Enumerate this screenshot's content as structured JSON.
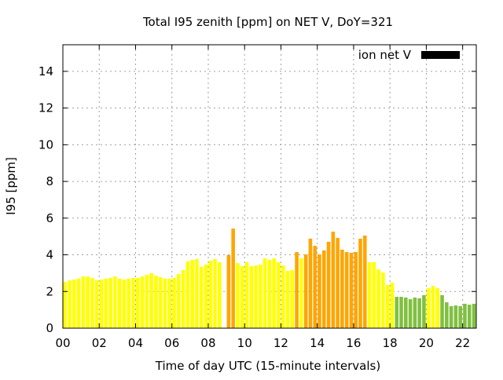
{
  "chart_data": {
    "type": "bar",
    "title": "Total I95 zenith [ppm] on NET V, DoY=321",
    "xlabel": "Time of day UTC (15-minute intervals)",
    "ylabel": "I95 [ppm]",
    "xlim": [
      0,
      22.75
    ],
    "ylim": [
      0,
      15.45
    ],
    "interval_hours": 0.25,
    "grid": true,
    "x_ticks": [
      0,
      2,
      4,
      6,
      8,
      10,
      12,
      14,
      16,
      18,
      20,
      22
    ],
    "x_tick_labels": [
      "00",
      "02",
      "04",
      "06",
      "08",
      "10",
      "12",
      "14",
      "16",
      "18",
      "20",
      "22"
    ],
    "y_ticks": [
      0,
      2,
      4,
      6,
      8,
      10,
      12,
      14
    ],
    "y_tick_labels": [
      "0",
      "2",
      "4",
      "6",
      "8",
      "10",
      "12",
      "14"
    ],
    "legend": {
      "label": "ion net V",
      "color": "#000000",
      "placement": "top-right"
    },
    "palette": {
      "y": "#ffff00",
      "o": "#ffa500",
      "g": "#80c040"
    },
    "values": [
      2.52,
      2.61,
      2.65,
      2.7,
      2.82,
      2.82,
      2.74,
      2.61,
      2.65,
      2.7,
      2.74,
      2.82,
      2.7,
      2.65,
      2.7,
      2.74,
      2.74,
      2.82,
      2.91,
      3.0,
      2.87,
      2.78,
      2.7,
      2.7,
      2.74,
      2.95,
      3.17,
      3.64,
      3.72,
      3.77,
      3.34,
      3.47,
      3.68,
      3.77,
      3.6,
      null,
      3.98,
      5.43,
      3.55,
      3.38,
      3.6,
      3.38,
      3.42,
      3.47,
      3.81,
      3.72,
      3.81,
      3.6,
      3.42,
      3.12,
      3.17,
      4.15,
      3.81,
      4.02,
      4.88,
      4.49,
      4.02,
      4.24,
      4.71,
      5.26,
      4.92,
      4.28,
      4.15,
      4.11,
      4.15,
      4.88,
      5.05,
      3.6,
      3.6,
      3.21,
      3.04,
      2.35,
      2.48,
      1.71,
      1.71,
      1.67,
      1.58,
      1.67,
      1.63,
      1.8,
      2.18,
      2.31,
      2.18,
      1.8,
      1.41,
      1.2,
      1.24,
      1.2,
      1.33,
      1.28,
      1.33
    ],
    "colors": [
      "y",
      "y",
      "y",
      "y",
      "y",
      "y",
      "y",
      "y",
      "y",
      "y",
      "y",
      "y",
      "y",
      "y",
      "y",
      "y",
      "y",
      "y",
      "y",
      "y",
      "y",
      "y",
      "y",
      "y",
      "y",
      "y",
      "y",
      "y",
      "y",
      "y",
      "y",
      "y",
      "y",
      "y",
      "y",
      "y",
      "o",
      "o",
      "y",
      "y",
      "y",
      "y",
      "y",
      "y",
      "y",
      "y",
      "y",
      "y",
      "y",
      "y",
      "y",
      "o",
      "y",
      "o",
      "o",
      "o",
      "o",
      "o",
      "o",
      "o",
      "o",
      "o",
      "o",
      "o",
      "o",
      "o",
      "o",
      "y",
      "y",
      "y",
      "y",
      "y",
      "y",
      "g",
      "g",
      "g",
      "g",
      "g",
      "g",
      "g",
      "y",
      "y",
      "y",
      "g",
      "g",
      "g",
      "g",
      "g",
      "g",
      "g",
      "g"
    ]
  }
}
